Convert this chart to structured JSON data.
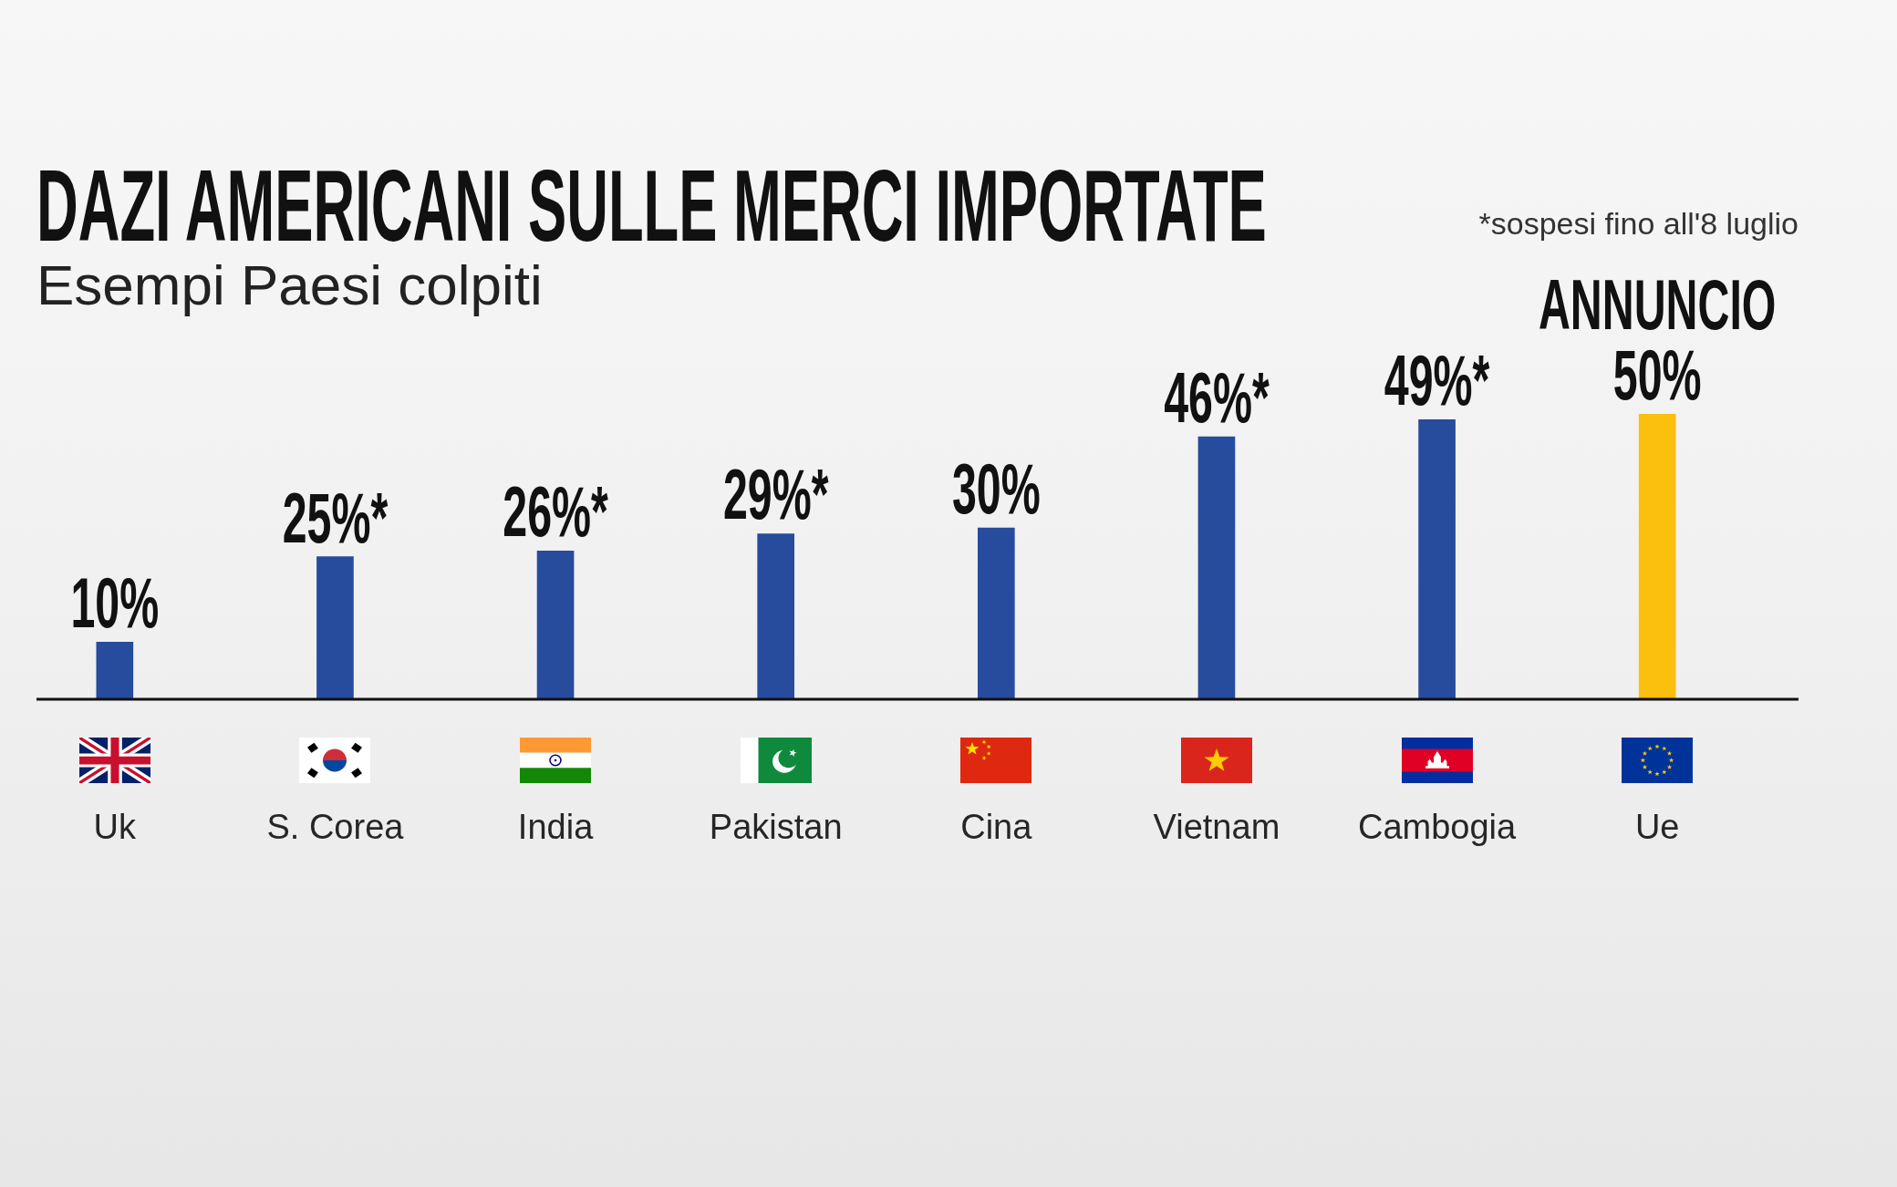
{
  "chart_data": {
    "type": "bar",
    "title": "DAZI AMERICANI SULLE MERCI IMPORTATE",
    "subtitle": "Esempi Paesi colpiti",
    "categories": [
      "Uk",
      "S. Corea",
      "India",
      "Pakistan",
      "Cina",
      "Vietnam",
      "Cambogia",
      "Ue"
    ],
    "values": [
      10,
      25,
      26,
      29,
      30,
      46,
      49,
      50
    ],
    "colors": [
      "#274c9e",
      "#274c9e",
      "#274c9e",
      "#274c9e",
      "#274c9e",
      "#274c9e",
      "#274c9e",
      "#fbbf0e"
    ],
    "value_labels": [
      "10%",
      "25%*",
      "26%*",
      "29%*",
      "30%",
      "46%*",
      "49%*",
      "50%"
    ],
    "annotations": [
      {
        "text": "ANNUNCIO",
        "x": "Ue",
        "y": 50
      },
      "*sospesi fino all'8 luglio"
    ],
    "tick_labels": "x",
    "grid": false,
    "legend": false
  }
}
